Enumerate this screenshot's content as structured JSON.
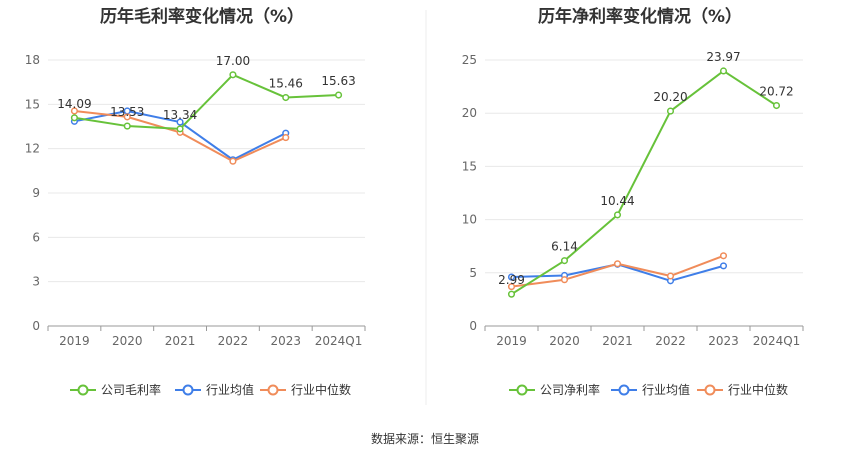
{
  "source_label": "数据来源：恒生聚源",
  "colors": {
    "company": "#67c23a",
    "industry_avg": "#3f7ee8",
    "industry_median": "#f08c5a",
    "grid": "#e8e8e8",
    "axis": "#999999",
    "divider": "#eeeeee"
  },
  "chart_data": [
    {
      "type": "line",
      "title": "历年毛利率变化情况（%）",
      "categories": [
        "2019",
        "2020",
        "2021",
        "2022",
        "2023",
        "2024Q1"
      ],
      "ylim": [
        0,
        18
      ],
      "yticks": [
        0,
        3,
        6,
        9,
        12,
        15,
        18
      ],
      "grid": true,
      "legend_position": "bottom",
      "series": [
        {
          "name": "公司毛利率",
          "key": "company",
          "labeled": true,
          "values": [
            14.09,
            13.53,
            13.34,
            17.0,
            15.46,
            15.63
          ]
        },
        {
          "name": "行业均值",
          "key": "industry_avg",
          "labeled": false,
          "values": [
            13.85,
            14.55,
            13.8,
            11.25,
            13.05,
            null
          ]
        },
        {
          "name": "行业中位数",
          "key": "industry_median",
          "labeled": false,
          "values": [
            14.55,
            14.15,
            13.1,
            11.15,
            12.75,
            null
          ]
        }
      ],
      "labels": [
        "14.09",
        "13.53",
        "13.34",
        "17.00",
        "15.46",
        "15.63"
      ]
    },
    {
      "type": "line",
      "title": "历年净利率变化情况（%）",
      "categories": [
        "2019",
        "2020",
        "2021",
        "2022",
        "2023",
        "2024Q1"
      ],
      "ylim": [
        0,
        25
      ],
      "yticks": [
        0,
        5,
        10,
        15,
        20,
        25
      ],
      "grid": true,
      "legend_position": "bottom",
      "series": [
        {
          "name": "公司净利率",
          "key": "company",
          "labeled": true,
          "values": [
            2.99,
            6.14,
            10.44,
            20.2,
            23.97,
            20.72
          ]
        },
        {
          "name": "行业均值",
          "key": "industry_avg",
          "labeled": false,
          "values": [
            4.6,
            4.75,
            5.8,
            4.25,
            5.65,
            null
          ]
        },
        {
          "name": "行业中位数",
          "key": "industry_median",
          "labeled": false,
          "values": [
            3.7,
            4.35,
            5.85,
            4.7,
            6.6,
            null
          ]
        }
      ],
      "labels": [
        "2.99",
        "6.14",
        "10.44",
        "20.20",
        "23.97",
        "20.72"
      ]
    }
  ]
}
